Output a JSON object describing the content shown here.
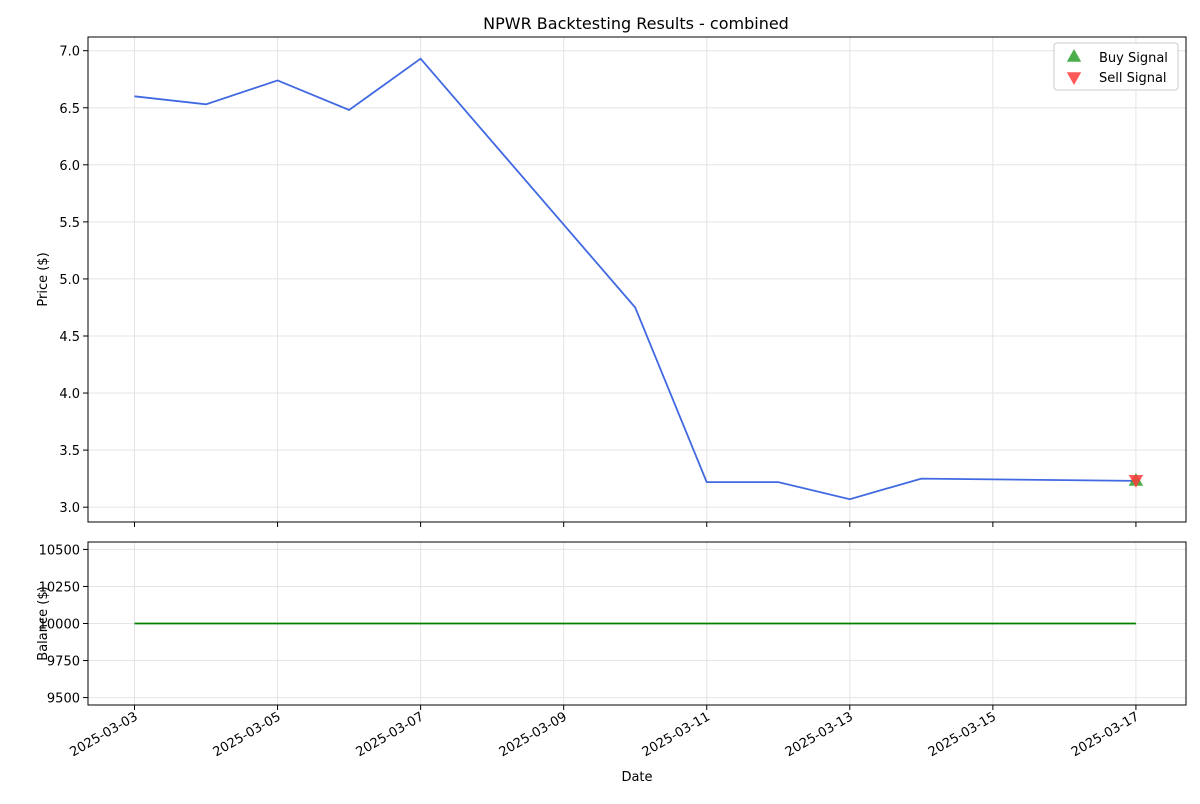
{
  "chart_data": [
    {
      "type": "line",
      "title": "NPWR Backtesting Results - combined",
      "ylabel": "Price ($)",
      "xlabel": "",
      "ylim": [
        2.87,
        7.12
      ],
      "xlim": [
        "2025-03-02",
        "2025-03-17"
      ],
      "grid": true,
      "legend_position": "top-right",
      "yticks": [
        3.0,
        3.5,
        4.0,
        4.5,
        5.0,
        5.5,
        6.0,
        6.5,
        7.0
      ],
      "ytick_labels": [
        "3.0",
        "3.5",
        "4.0",
        "4.5",
        "5.0",
        "5.5",
        "6.0",
        "6.5",
        "7.0"
      ],
      "series": [
        {
          "type": "line",
          "color": "#4169e1",
          "points": [
            {
              "x": "2025-03-03",
              "y": 6.6
            },
            {
              "x": "2025-03-04",
              "y": 6.53
            },
            {
              "x": "2025-03-05",
              "y": 6.74
            },
            {
              "x": "2025-03-06",
              "y": 6.48
            },
            {
              "x": "2025-03-07",
              "y": 6.93
            },
            {
              "x": "2025-03-10",
              "y": 4.75
            },
            {
              "x": "2025-03-11",
              "y": 3.22
            },
            {
              "x": "2025-03-12",
              "y": 3.22
            },
            {
              "x": "2025-03-13",
              "y": 3.07
            },
            {
              "x": "2025-03-14",
              "y": 3.25
            },
            {
              "x": "2025-03-17",
              "y": 3.23
            }
          ]
        },
        {
          "name": "Buy Signal",
          "type": "scatter",
          "marker": "triangle-up",
          "color": "#2ca02c",
          "points": [
            {
              "x": "2025-03-17",
              "y": 3.23
            }
          ]
        },
        {
          "name": "Sell Signal",
          "type": "scatter",
          "marker": "triangle-down",
          "color": "#ff3b3b",
          "points": [
            {
              "x": "2025-03-17",
              "y": 3.24
            }
          ]
        }
      ]
    },
    {
      "type": "line",
      "title": "",
      "ylabel": "Balance ($)",
      "xlabel": "Date",
      "ylim": [
        9450,
        10550
      ],
      "xlim": [
        "2025-03-02",
        "2025-03-17"
      ],
      "grid": true,
      "yticks": [
        9500,
        9750,
        10000,
        10250,
        10500
      ],
      "ytick_labels": [
        "9500",
        "9750",
        "10000",
        "10250",
        "10500"
      ],
      "xticks": [
        "2025-03-03",
        "2025-03-05",
        "2025-03-07",
        "2025-03-09",
        "2025-03-11",
        "2025-03-13",
        "2025-03-15",
        "2025-03-17"
      ],
      "xtick_labels": [
        "2025-03-03",
        "2025-03-05",
        "2025-03-07",
        "2025-03-09",
        "2025-03-11",
        "2025-03-13",
        "2025-03-15",
        "2025-03-17"
      ],
      "series": [
        {
          "type": "line",
          "color": "#008000",
          "points": [
            {
              "x": "2025-03-03",
              "y": 10000
            },
            {
              "x": "2025-03-17",
              "y": 10000
            }
          ]
        }
      ]
    }
  ]
}
